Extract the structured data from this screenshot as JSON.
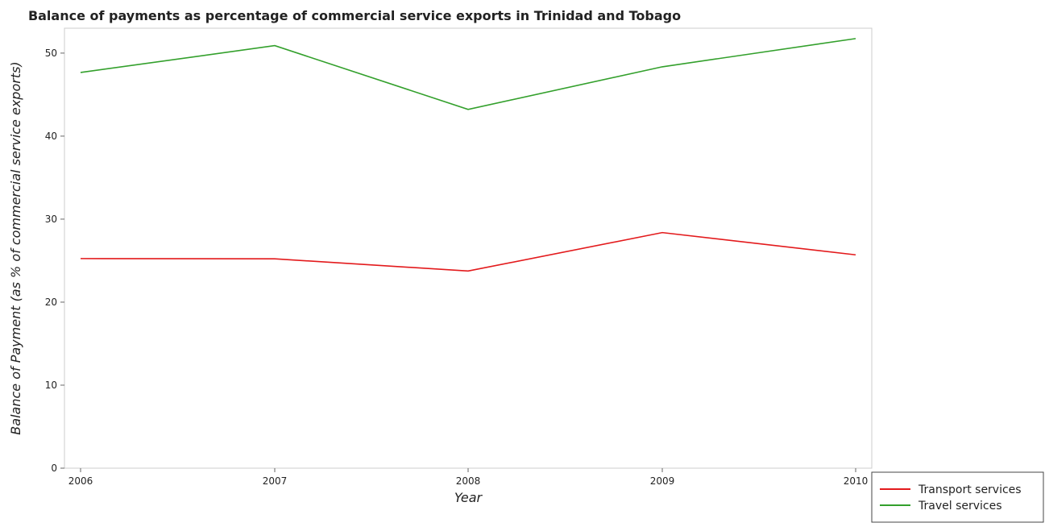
{
  "chart_data": {
    "type": "line",
    "title": "Balance of payments as percentage of commercial service exports in Trinidad and Tobago",
    "xlabel": "Year",
    "ylabel": "Balance of Payment (as % of commercial service exports)",
    "categories": [
      "2006",
      "2007",
      "2008",
      "2009",
      "2010"
    ],
    "ylim": [
      0,
      53
    ],
    "yticks": [
      0,
      10,
      20,
      30,
      40,
      50
    ],
    "ytick_labels": [
      "0",
      "10",
      "20",
      "30",
      "40",
      "50"
    ],
    "grid": false,
    "legend_position": "bottom-right",
    "series": [
      {
        "name": "Transport services",
        "color": "#e31a1c",
        "values": [
          25.25,
          25.22,
          23.75,
          28.38,
          25.7
        ]
      },
      {
        "name": "Travel services",
        "color": "#33a02c",
        "values": [
          47.67,
          50.9,
          43.22,
          48.35,
          51.75
        ]
      }
    ]
  }
}
